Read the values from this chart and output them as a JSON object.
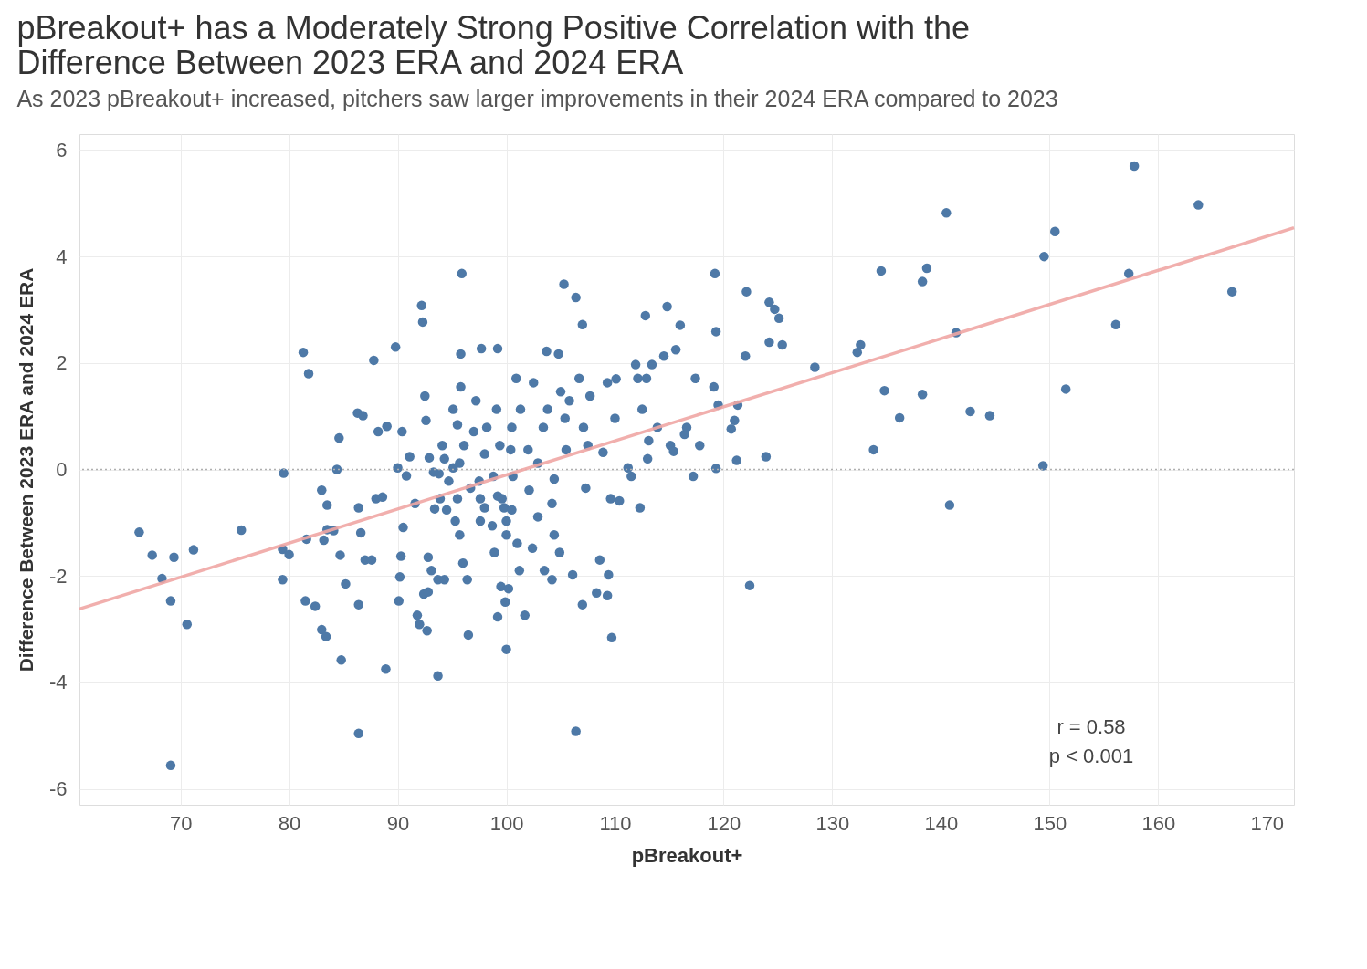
{
  "chart_data": {
    "type": "scatter",
    "title": [
      "pBreakout+ has a Moderately Strong Positive Correlation with the",
      "Difference Between 2023 ERA and 2024 ERA"
    ],
    "subtitle": "As 2023 pBreakout+ increased, pitchers saw larger improvements in their 2024 ERA compared to 2023",
    "xlabel": "pBreakout+",
    "ylabel": "Difference Between 2023 ERA and 2024 ERA",
    "xlim": [
      60.7,
      172.5
    ],
    "xticks": [
      70,
      80,
      90,
      100,
      110,
      120,
      130,
      140,
      150,
      160,
      170
    ],
    "ylim": [
      -6.3,
      6.3
    ],
    "yticks": [
      -6,
      -4,
      -2,
      0,
      2,
      4,
      6
    ],
    "grid": true,
    "ref_lines": [
      {
        "axis": "y",
        "value": 0,
        "color": "#b0b0b0",
        "line_style": "dotted"
      }
    ],
    "annotations": [
      "r = 0.58",
      "p < 0.001"
    ],
    "series": [
      {
        "color": "#4e79a7",
        "marker": "circle",
        "x": [
          66.2,
          67.4,
          68.3,
          69.1,
          69.4,
          69.1,
          70.6,
          71.2,
          75.6,
          79.5,
          79.4,
          80.0,
          79.4,
          81.3,
          81.8,
          81.6,
          81.5,
          82.4,
          83.0,
          83.4,
          84.8,
          83.0,
          83.5,
          84.4,
          84.6,
          83.5,
          83.2,
          84.1,
          84.7,
          85.2,
          86.4,
          86.3,
          86.8,
          86.6,
          87.0,
          87.6,
          86.4,
          86.4,
          87.8,
          88.0,
          88.2,
          88.6,
          89.0,
          88.9,
          89.8,
          90.0,
          90.2,
          90.3,
          90.4,
          90.8,
          90.5,
          90.1,
          91.1,
          91.6,
          92.0,
          91.8,
          92.2,
          92.3,
          92.5,
          92.6,
          92.4,
          92.8,
          92.7,
          92.9,
          92.8,
          93.1,
          93.7,
          93.7,
          94.3,
          93.8,
          93.9,
          94.1,
          93.4,
          94.7,
          94.5,
          95.1,
          95.5,
          95.9,
          95.8,
          95.8,
          95.7,
          96.1,
          95.3,
          95.7,
          96.0,
          96.4,
          96.5,
          97.0,
          97.2,
          97.5,
          97.6,
          97.6,
          97.7,
          98.0,
          98.2,
          98.7,
          98.9,
          99.2,
          99.1,
          99.4,
          99.2,
          99.2,
          99.5,
          99.8,
          100.0,
          99.9,
          100.0,
          100.2,
          100.4,
          100.5,
          100.6,
          100.9,
          101.0,
          101.2,
          101.7,
          102.0,
          102.4,
          102.5,
          102.9,
          103.4,
          103.5,
          103.7,
          104.2,
          104.4,
          104.2,
          104.4,
          104.8,
          104.9,
          105.3,
          105.4,
          105.5,
          105.8,
          106.1,
          106.4,
          106.4,
          106.7,
          107.0,
          107.1,
          107.0,
          107.3,
          107.7,
          108.3,
          108.6,
          108.9,
          109.3,
          109.4,
          109.3,
          109.6,
          109.7,
          110.0,
          110.1,
          110.4,
          111.2,
          111.5,
          111.9,
          112.1,
          112.3,
          112.5,
          112.8,
          112.9,
          113.0,
          113.1,
          113.4,
          113.9,
          114.5,
          114.8,
          115.1,
          115.4,
          115.6,
          116.0,
          116.4,
          116.6,
          117.2,
          117.4,
          117.8,
          119.1,
          119.2,
          119.3,
          119.3,
          119.5,
          120.7,
          121.0,
          121.3,
          121.2,
          122.0,
          122.1,
          122.4,
          123.9,
          124.2,
          124.2,
          124.7,
          125.1,
          125.4,
          128.4,
          132.3,
          132.6,
          133.8,
          134.5,
          134.8,
          136.2,
          138.3,
          138.7,
          138.3,
          140.5,
          140.8,
          141.4,
          142.7,
          144.5,
          149.5,
          149.4,
          150.5,
          151.5,
          156.1,
          157.3,
          157.8,
          163.7,
          166.8,
          94.3,
          95.1,
          93.3,
          96.7,
          98.8,
          99.6,
          100.5,
          98.0,
          95.5,
          100.0,
          101.3,
          102.1,
          102.9,
          103.8,
          105.0,
          107.5
        ],
        "values": [
          -1.18,
          -1.61,
          -2.05,
          -2.47,
          -1.65,
          -5.56,
          -2.91,
          -1.51,
          -1.14,
          -0.07,
          -1.5,
          -1.6,
          -2.07,
          2.2,
          1.8,
          -1.31,
          -2.47,
          -2.57,
          -3.01,
          -3.14,
          -3.58,
          -0.39,
          -0.67,
          0.0,
          0.59,
          -1.13,
          -1.33,
          -1.15,
          -1.61,
          -2.15,
          -0.72,
          1.06,
          1.01,
          -1.19,
          -1.7,
          -1.7,
          -2.54,
          -4.96,
          2.05,
          -0.55,
          0.71,
          -0.52,
          0.81,
          -3.75,
          2.3,
          0.03,
          -2.02,
          -1.63,
          0.71,
          -0.12,
          -1.09,
          -2.47,
          0.24,
          -0.64,
          -2.91,
          -2.74,
          3.08,
          2.77,
          1.38,
          0.92,
          -2.34,
          -2.3,
          -3.03,
          0.22,
          -1.65,
          -1.9,
          -3.88,
          -2.07,
          -2.07,
          -0.08,
          -0.55,
          0.45,
          -0.74,
          -0.22,
          -0.76,
          1.13,
          0.84,
          3.68,
          2.17,
          1.55,
          0.12,
          0.45,
          -0.97,
          -1.23,
          -1.76,
          -2.07,
          -3.11,
          0.71,
          1.29,
          -0.22,
          -0.55,
          -0.97,
          2.27,
          0.29,
          0.79,
          -1.06,
          -1.56,
          2.27,
          1.13,
          0.45,
          -0.5,
          -2.77,
          -2.2,
          -0.72,
          -3.38,
          -2.49,
          -0.97,
          -2.24,
          0.37,
          0.79,
          -0.13,
          1.71,
          -1.39,
          -1.9,
          -2.74,
          0.37,
          -1.48,
          1.63,
          -0.89,
          0.79,
          -1.9,
          2.22,
          -2.07,
          -0.18,
          -0.64,
          -1.23,
          2.17,
          -1.56,
          3.48,
          0.96,
          0.37,
          1.29,
          -1.98,
          3.23,
          -4.92,
          1.71,
          2.72,
          0.79,
          -2.54,
          -0.35,
          1.38,
          -2.32,
          -1.7,
          0.32,
          -2.37,
          -1.98,
          1.63,
          -0.55,
          -3.16,
          0.96,
          1.7,
          -0.59,
          0.03,
          -0.13,
          1.97,
          1.71,
          -0.72,
          1.13,
          2.89,
          1.71,
          0.2,
          0.54,
          1.97,
          0.79,
          2.13,
          3.06,
          0.45,
          0.34,
          2.25,
          2.71,
          0.66,
          0.79,
          -0.13,
          1.71,
          0.45,
          1.55,
          3.68,
          2.59,
          0.02,
          1.21,
          0.76,
          0.92,
          1.21,
          0.17,
          2.13,
          3.34,
          -2.18,
          0.24,
          2.39,
          3.14,
          3.01,
          2.84,
          2.34,
          1.92,
          2.2,
          2.34,
          0.37,
          3.73,
          1.48,
          0.97,
          3.53,
          3.78,
          1.41,
          4.82,
          -0.67,
          2.57,
          1.09,
          1.01,
          4.0,
          0.07,
          4.47,
          1.51,
          2.72,
          3.68,
          5.7,
          4.97,
          3.34,
          0.2,
          0.03,
          -0.05,
          -0.35,
          -0.13,
          -0.55,
          -0.76,
          -0.72,
          -0.55,
          -1.23,
          1.13,
          -0.39,
          0.12,
          1.13,
          1.46,
          0.45
        ]
      },
      {
        "type": "line",
        "color": "#f0a6a4",
        "x": [
          60.7,
          172.5
        ],
        "values": [
          -2.62,
          4.54
        ]
      }
    ]
  }
}
